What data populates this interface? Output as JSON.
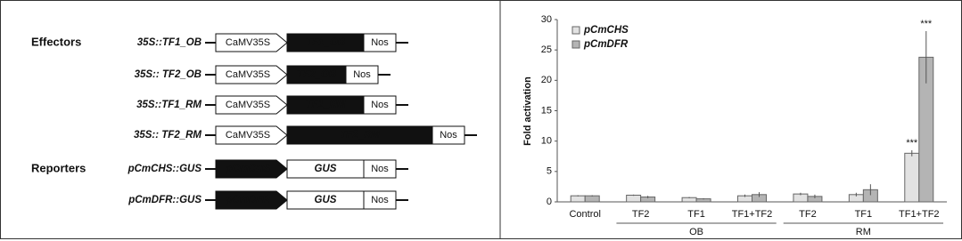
{
  "diagram": {
    "sections": [
      "Effectors",
      "Reporters"
    ],
    "constructs": [
      {
        "label": "35S::TF1_OB",
        "promoter": "CaMV35S",
        "gene": "TF1_OB",
        "terminator": "Nos"
      },
      {
        "label": "35S:: TF2_OB",
        "promoter": "CaMV35S",
        "gene": "TF2_OB",
        "terminator": "Nos"
      },
      {
        "label": "35S::TF1_RM",
        "promoter": "CaMV35S",
        "gene": "TF1_RM",
        "terminator": "Nos"
      },
      {
        "label": "35S:: TF2_RM",
        "promoter": "CaMV35S",
        "gene": "TF2_RM",
        "terminator": "Nos"
      },
      {
        "label": "pCmCHS::GUS",
        "promoter": "pCmCHS",
        "gene": "GUS",
        "terminator": "Nos"
      },
      {
        "label": "pCmDFR::GUS",
        "promoter": "pCmDFR",
        "gene": "GUS",
        "terminator": "Nos"
      }
    ]
  },
  "chart_data": {
    "type": "bar",
    "y_label": "Fold activation",
    "categories": [
      "Control",
      "TF2",
      "TF1",
      "TF1+TF2",
      "TF2",
      "TF1",
      "TF1+TF2"
    ],
    "groups": [
      "OB",
      "RM"
    ],
    "series": [
      {
        "name": "pCmCHS",
        "color": "#e2e2e2",
        "values": [
          1.0,
          1.1,
          0.7,
          1.0,
          1.3,
          1.2,
          8.0
        ],
        "errors": [
          0.1,
          0.1,
          0.1,
          0.2,
          0.2,
          0.3,
          0.5
        ],
        "significance": [
          null,
          null,
          null,
          null,
          null,
          null,
          "***"
        ]
      },
      {
        "name": "pCmDFR",
        "color": "#b4b4b4",
        "values": [
          1.0,
          0.8,
          0.5,
          1.2,
          0.9,
          2.0,
          23.8
        ],
        "errors": [
          0.1,
          0.2,
          0.1,
          0.4,
          0.3,
          0.9,
          4.3
        ],
        "significance": [
          null,
          null,
          null,
          null,
          null,
          null,
          "***"
        ]
      }
    ],
    "ylim": [
      0,
      30
    ],
    "yticks": [
      0,
      5,
      10,
      15,
      20,
      25,
      30
    ],
    "legend": "upper left"
  }
}
